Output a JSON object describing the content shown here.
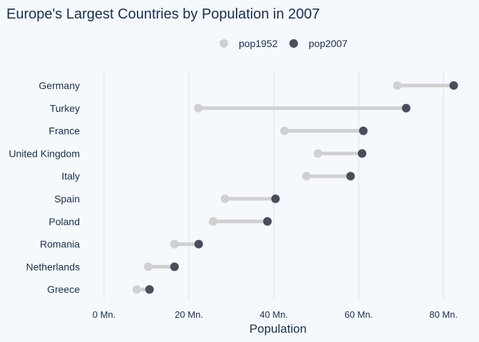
{
  "chart_data": {
    "type": "dumbbell",
    "title": "Europe's Largest Countries by Population in 2007",
    "xlabel": "Population",
    "ylabel": "",
    "xlim": [
      0,
      85
    ],
    "x_ticks": [
      0,
      20,
      40,
      60,
      80
    ],
    "x_tick_labels": [
      "0 Mn.",
      "20 Mn.",
      "40 Mn.",
      "60 Mn.",
      "80 Mn."
    ],
    "grid": true,
    "legend_position": "top-center",
    "categories": [
      "Germany",
      "Turkey",
      "France",
      "United Kingdom",
      "Italy",
      "Spain",
      "Poland",
      "Romania",
      "Netherlands",
      "Greece"
    ],
    "series": [
      {
        "name": "pop1952",
        "color": "#d0d0d0",
        "values": [
          69.1,
          22.2,
          42.5,
          50.4,
          47.7,
          28.5,
          25.7,
          16.6,
          10.4,
          7.7
        ]
      },
      {
        "name": "pop2007",
        "color": "#4a4d5a",
        "values": [
          82.4,
          71.2,
          61.1,
          60.8,
          58.1,
          40.4,
          38.5,
          22.3,
          16.6,
          10.7
        ]
      }
    ],
    "connector_color": "#d0d0d0"
  }
}
